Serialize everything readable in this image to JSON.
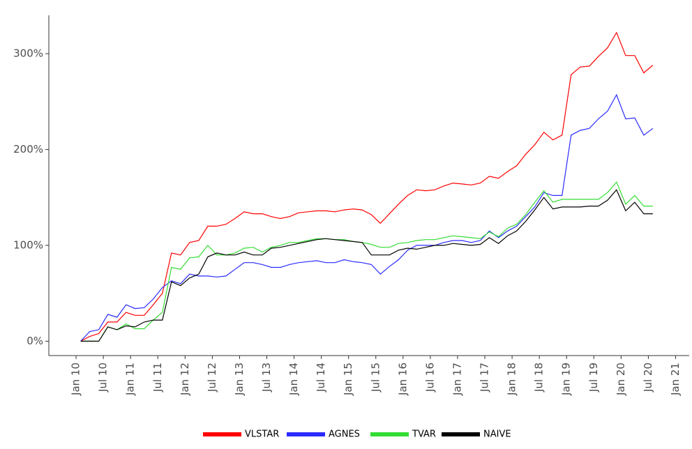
{
  "chart_data": {
    "type": "line",
    "x": [
      "2010-02",
      "2010-04",
      "2010-06",
      "2010-08",
      "2010-10",
      "2010-12",
      "2011-02",
      "2011-04",
      "2011-06",
      "2011-08",
      "2011-10",
      "2011-12",
      "2012-02",
      "2012-04",
      "2012-06",
      "2012-08",
      "2012-10",
      "2012-12",
      "2013-02",
      "2013-04",
      "2013-06",
      "2013-08",
      "2013-10",
      "2013-12",
      "2014-02",
      "2014-04",
      "2014-06",
      "2014-08",
      "2014-10",
      "2014-12",
      "2015-02",
      "2015-04",
      "2015-06",
      "2015-08",
      "2015-10",
      "2015-12",
      "2016-02",
      "2016-04",
      "2016-06",
      "2016-08",
      "2016-10",
      "2016-12",
      "2017-02",
      "2017-04",
      "2017-06",
      "2017-08",
      "2017-10",
      "2017-12",
      "2018-02",
      "2018-04",
      "2018-06",
      "2018-08",
      "2018-10",
      "2018-12",
      "2019-02",
      "2019-04",
      "2019-06",
      "2019-08",
      "2019-10",
      "2019-12",
      "2020-02",
      "2020-04",
      "2020-06",
      "2020-08"
    ],
    "series": [
      {
        "name": "VLSTAR",
        "color": "#ff0000",
        "values": [
          0,
          5,
          8,
          20,
          20,
          30,
          27,
          27,
          38,
          50,
          92,
          90,
          103,
          105,
          120,
          120,
          122,
          128,
          135,
          133,
          133,
          130,
          128,
          130,
          134,
          135,
          136,
          136,
          135,
          137,
          138,
          137,
          132,
          123,
          133,
          143,
          152,
          158,
          157,
          158,
          162,
          165,
          164,
          163,
          165,
          172,
          170,
          177,
          183,
          195,
          205,
          218,
          210,
          215,
          278,
          286,
          287,
          297,
          306,
          322,
          298,
          298,
          280,
          288
        ]
      },
      {
        "name": "AGNES",
        "color": "#2b2bff",
        "values": [
          0,
          10,
          12,
          28,
          25,
          38,
          34,
          35,
          44,
          56,
          63,
          60,
          70,
          68,
          68,
          67,
          68,
          75,
          82,
          82,
          80,
          77,
          77,
          80,
          82,
          83,
          84,
          82,
          82,
          85,
          83,
          82,
          80,
          70,
          78,
          85,
          95,
          100,
          100,
          100,
          103,
          105,
          105,
          103,
          105,
          115,
          108,
          115,
          120,
          130,
          140,
          155,
          152,
          152,
          215,
          220,
          222,
          232,
          240,
          257,
          232,
          233,
          215,
          222
        ]
      },
      {
        "name": "TVAR",
        "color": "#33dd33",
        "values": [
          0,
          0,
          0,
          15,
          12,
          18,
          13,
          13,
          22,
          30,
          77,
          75,
          87,
          88,
          100,
          90,
          90,
          92,
          97,
          98,
          93,
          98,
          100,
          103,
          103,
          105,
          107,
          107,
          106,
          106,
          104,
          103,
          101,
          98,
          98,
          102,
          103,
          105,
          106,
          106,
          108,
          110,
          109,
          108,
          107,
          114,
          109,
          118,
          122,
          132,
          145,
          157,
          145,
          148,
          148,
          148,
          148,
          148,
          155,
          166,
          143,
          152,
          141,
          141
        ]
      },
      {
        "name": "NAIVE",
        "color": "#000000",
        "values": [
          0,
          0,
          0,
          15,
          12,
          16,
          15,
          20,
          22,
          22,
          62,
          58,
          66,
          70,
          88,
          92,
          90,
          90,
          93,
          90,
          90,
          97,
          98,
          100,
          102,
          104,
          106,
          107,
          106,
          105,
          104,
          103,
          90,
          90,
          90,
          95,
          97,
          96,
          98,
          100,
          100,
          102,
          101,
          100,
          101,
          108,
          102,
          110,
          115,
          125,
          137,
          150,
          138,
          140,
          140,
          140,
          141,
          141,
          147,
          158,
          136,
          145,
          133,
          133
        ]
      }
    ],
    "xlim": [
      "2009-07",
      "2021-04"
    ],
    "xticks": [
      {
        "value": "2010-01",
        "label": "Jan 10"
      },
      {
        "value": "2010-07",
        "label": "Jul 10"
      },
      {
        "value": "2011-01",
        "label": "Jan 11"
      },
      {
        "value": "2011-07",
        "label": "Jul 11"
      },
      {
        "value": "2012-01",
        "label": "Jan 12"
      },
      {
        "value": "2012-07",
        "label": "Jul 12"
      },
      {
        "value": "2013-01",
        "label": "Jan 13"
      },
      {
        "value": "2013-07",
        "label": "Jul 13"
      },
      {
        "value": "2014-01",
        "label": "Jan 14"
      },
      {
        "value": "2014-07",
        "label": "Jul 14"
      },
      {
        "value": "2015-01",
        "label": "Jan 15"
      },
      {
        "value": "2015-07",
        "label": "Jul 15"
      },
      {
        "value": "2016-01",
        "label": "Jan 16"
      },
      {
        "value": "2016-07",
        "label": "Jul 16"
      },
      {
        "value": "2017-01",
        "label": "Jan 17"
      },
      {
        "value": "2017-07",
        "label": "Jul 17"
      },
      {
        "value": "2018-01",
        "label": "Jan 18"
      },
      {
        "value": "2018-07",
        "label": "Jul 18"
      },
      {
        "value": "2019-01",
        "label": "Jan 19"
      },
      {
        "value": "2019-07",
        "label": "Jul 19"
      },
      {
        "value": "2020-01",
        "label": "Jan 20"
      },
      {
        "value": "2020-07",
        "label": "Jul 20"
      },
      {
        "value": "2021-01",
        "label": "Jan 21"
      }
    ],
    "ylim": [
      -15,
      340
    ],
    "yticks": [
      {
        "value": 0,
        "label": "0%"
      },
      {
        "value": 100,
        "label": "100%"
      },
      {
        "value": 200,
        "label": "200%"
      },
      {
        "value": 300,
        "label": "300%"
      }
    ],
    "grid": false,
    "legend": "bottom"
  }
}
